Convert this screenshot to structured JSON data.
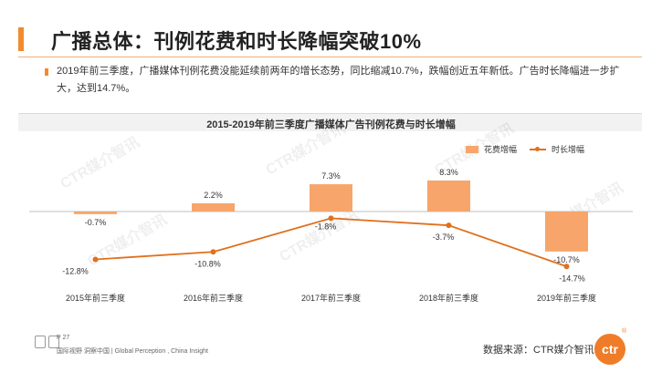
{
  "page": {
    "title": "广播总体：刊例花费和时长降幅突破10%",
    "description": "2019年前三季度，广播媒体刊例花费没能延续前两年的增长态势，同比缩减10.7%，跌幅创近五年新低。广告时长降幅进一步扩大，达到14.7%。",
    "page_number": "P 27",
    "footer_text": "国际视野 洞察中国 | Global Perception , China Insight",
    "source": "数据来源：CTR媒介智讯",
    "logo_text": "ctr",
    "logo_mark": "®",
    "watermark": "CTR媒介智讯",
    "accent_color": "#f28a2e"
  },
  "chart_data": {
    "type": "bar",
    "title": "2015-2019年前三季度广播媒体广告刊例花费与时长增幅",
    "categories": [
      "2015年前三季度",
      "2016年前三季度",
      "2017年前三季度",
      "2018年前三季度",
      "2019年前三季度"
    ],
    "series": [
      {
        "name": "花费增幅",
        "type": "bar",
        "color": "#f7a56b",
        "values": [
          -0.7,
          2.2,
          7.3,
          8.3,
          -10.7
        ],
        "labels": [
          "-0.7%",
          "2.2%",
          "7.3%",
          "8.3%",
          "-10.7%"
        ]
      },
      {
        "name": "时长增幅",
        "type": "line",
        "color": "#e0701e",
        "values": [
          -12.8,
          -10.8,
          -1.8,
          -3.7,
          -14.7
        ],
        "labels": [
          "-12.8%",
          "-10.8%",
          "-1.8%",
          "-3.7%",
          "-14.7%"
        ]
      }
    ],
    "ylim": [
      -15,
      10
    ],
    "legend": "top-right",
    "grid": false
  }
}
